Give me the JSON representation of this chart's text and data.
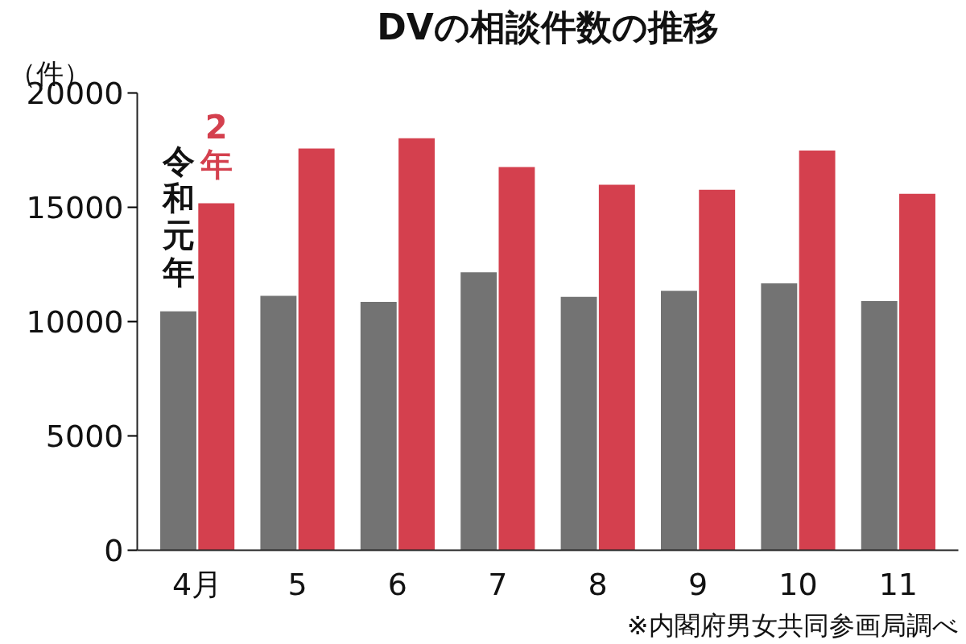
{
  "chart_data": {
    "type": "bar",
    "title": "DVの相談件数の推移",
    "ylabel": "（件）",
    "categories": [
      "4月",
      "5",
      "6",
      "7",
      "8",
      "9",
      "10",
      "11"
    ],
    "series": [
      {
        "name": "令和元年",
        "color": "#737373",
        "values": [
          10450,
          11130,
          10860,
          12160,
          11080,
          11350,
          11670,
          10900
        ]
      },
      {
        "name": "2年",
        "color": "#d4404e",
        "values": [
          15180,
          17570,
          18020,
          16760,
          15990,
          15770,
          17480,
          15590
        ]
      }
    ],
    "ylim": [
      0,
      20000
    ],
    "yticks": [
      0,
      5000,
      10000,
      15000,
      20000
    ],
    "grid": false,
    "annotations": [
      "※内閣府男女共同参画局調べ"
    ]
  }
}
